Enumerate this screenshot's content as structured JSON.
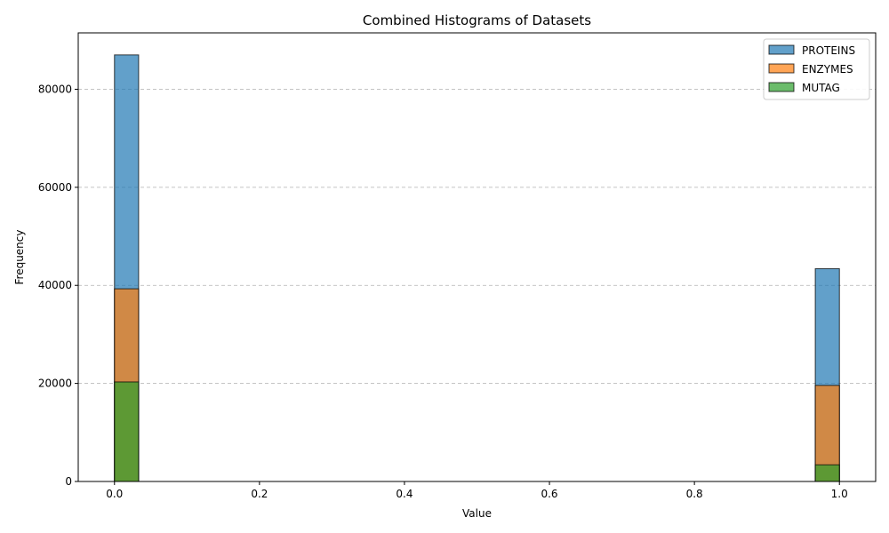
{
  "chart_data": {
    "type": "bar",
    "title": "Combined Histograms of Datasets",
    "xlabel": "Value",
    "ylabel": "Frequency",
    "xlim": [
      -0.05,
      1.05
    ],
    "ylim": [
      0,
      91500
    ],
    "xticks": [
      0.0,
      0.2,
      0.4,
      0.6,
      0.8,
      1.0
    ],
    "xtick_labels": [
      "0.0",
      "0.2",
      "0.4",
      "0.6",
      "0.8",
      "1.0"
    ],
    "yticks": [
      0,
      20000,
      40000,
      60000,
      80000
    ],
    "ytick_labels": [
      "0",
      "20000",
      "40000",
      "60000",
      "80000"
    ],
    "bin_width": 0.0333,
    "bin_starts": [
      0.0,
      0.9667
    ],
    "grid": "y-dashed",
    "legend_position": "top-right",
    "series": [
      {
        "name": "PROTEINS",
        "color": "#1f77b4",
        "values": [
          87000,
          43400
        ]
      },
      {
        "name": "ENZYMES",
        "color": "#ff7f0e",
        "values": [
          39300,
          19600
        ]
      },
      {
        "name": "MUTAG",
        "color": "#2ca02c",
        "values": [
          20300,
          3400
        ]
      }
    ]
  }
}
